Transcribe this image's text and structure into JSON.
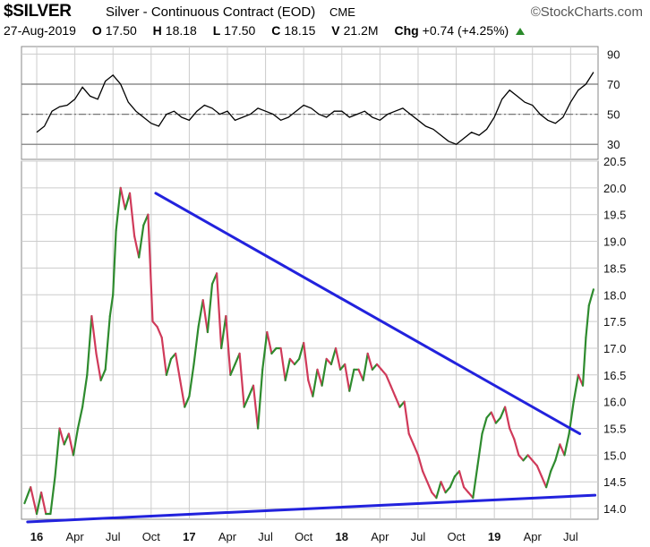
{
  "header": {
    "symbol": "$SILVER",
    "name": "Silver - Continuous Contract (EOD)",
    "exchange": "CME",
    "brand": "©StockCharts.com",
    "date": "27-Aug-2019",
    "open_label": "O",
    "open": "17.50",
    "high_label": "H",
    "high": "18.18",
    "low_label": "L",
    "low": "17.50",
    "close_label": "C",
    "close": "18.15",
    "volume_label": "V",
    "volume": "21.2M",
    "change_label": "Chg",
    "change": "+0.74 (+4.25%)"
  },
  "colors": {
    "up": "#2e8b2e",
    "down": "#d03a5a",
    "trendline": "#2222dd",
    "grid": "#cccccc",
    "indicator": "#000000"
  },
  "chart_data": [
    {
      "type": "line",
      "panel": "indicator",
      "ylim": [
        20,
        95
      ],
      "yticks": [
        90,
        70,
        50,
        30
      ],
      "reference_lines": [
        70,
        50,
        30
      ],
      "x": [
        2016.0,
        2016.05,
        2016.1,
        2016.15,
        2016.2,
        2016.25,
        2016.3,
        2016.35,
        2016.4,
        2016.45,
        2016.5,
        2016.55,
        2016.6,
        2016.65,
        2016.7,
        2016.75,
        2016.8,
        2016.85,
        2016.9,
        2016.95,
        2017.0,
        2017.05,
        2017.1,
        2017.15,
        2017.2,
        2017.25,
        2017.3,
        2017.35,
        2017.4,
        2017.45,
        2017.5,
        2017.55,
        2017.6,
        2017.65,
        2017.7,
        2017.75,
        2017.8,
        2017.85,
        2017.9,
        2017.95,
        2018.0,
        2018.05,
        2018.1,
        2018.15,
        2018.2,
        2018.25,
        2018.3,
        2018.35,
        2018.4,
        2018.45,
        2018.5,
        2018.55,
        2018.6,
        2018.65,
        2018.7,
        2018.75,
        2018.8,
        2018.85,
        2018.9,
        2018.95,
        2019.0,
        2019.05,
        2019.1,
        2019.15,
        2019.2,
        2019.25,
        2019.3,
        2019.35,
        2019.4,
        2019.45,
        2019.5,
        2019.55,
        2019.6,
        2019.65
      ],
      "values": [
        38,
        42,
        52,
        55,
        56,
        60,
        68,
        62,
        60,
        72,
        76,
        70,
        58,
        52,
        48,
        44,
        42,
        50,
        52,
        48,
        46,
        52,
        56,
        54,
        50,
        52,
        46,
        48,
        50,
        54,
        52,
        50,
        46,
        48,
        52,
        56,
        54,
        50,
        48,
        52,
        52,
        48,
        50,
        52,
        48,
        46,
        50,
        52,
        54,
        50,
        46,
        42,
        40,
        36,
        32,
        30,
        34,
        38,
        36,
        40,
        48,
        60,
        66,
        62,
        58,
        56,
        50,
        46,
        44,
        48,
        58,
        66,
        70,
        78
      ]
    },
    {
      "type": "line",
      "panel": "price",
      "ylim": [
        13.8,
        20.5
      ],
      "yticks": [
        20.5,
        20.0,
        19.5,
        19.0,
        18.5,
        18.0,
        17.5,
        17.0,
        16.5,
        16.0,
        15.5,
        15.0,
        14.5,
        14.0
      ],
      "x_tick_labels": [
        "16",
        "Apr",
        "Jul",
        "Oct",
        "17",
        "Apr",
        "Jul",
        "Oct",
        "18",
        "Apr",
        "Jul",
        "Oct",
        "19",
        "Apr",
        "Jul"
      ],
      "x_tick_values": [
        2016.0,
        2016.25,
        2016.5,
        2016.75,
        2017.0,
        2017.25,
        2017.5,
        2017.75,
        2018.0,
        2018.25,
        2018.5,
        2018.75,
        2019.0,
        2019.25,
        2019.5
      ],
      "x": [
        2015.92,
        2015.96,
        2016.0,
        2016.03,
        2016.06,
        2016.09,
        2016.12,
        2016.15,
        2016.18,
        2016.21,
        2016.24,
        2016.27,
        2016.3,
        2016.33,
        2016.36,
        2016.39,
        2016.42,
        2016.45,
        2016.48,
        2016.5,
        2016.52,
        2016.55,
        2016.58,
        2016.61,
        2016.64,
        2016.67,
        2016.7,
        2016.73,
        2016.76,
        2016.79,
        2016.82,
        2016.85,
        2016.88,
        2016.91,
        2016.94,
        2016.97,
        2017.0,
        2017.03,
        2017.06,
        2017.09,
        2017.12,
        2017.15,
        2017.18,
        2017.21,
        2017.24,
        2017.27,
        2017.3,
        2017.33,
        2017.36,
        2017.39,
        2017.42,
        2017.45,
        2017.48,
        2017.51,
        2017.54,
        2017.57,
        2017.6,
        2017.63,
        2017.66,
        2017.69,
        2017.72,
        2017.75,
        2017.78,
        2017.81,
        2017.84,
        2017.87,
        2017.9,
        2017.93,
        2017.96,
        2017.99,
        2018.02,
        2018.05,
        2018.08,
        2018.11,
        2018.14,
        2018.17,
        2018.2,
        2018.23,
        2018.26,
        2018.29,
        2018.32,
        2018.35,
        2018.38,
        2018.41,
        2018.44,
        2018.47,
        2018.5,
        2018.53,
        2018.56,
        2018.59,
        2018.62,
        2018.65,
        2018.68,
        2018.71,
        2018.74,
        2018.77,
        2018.8,
        2018.83,
        2018.86,
        2018.89,
        2018.92,
        2018.95,
        2018.98,
        2019.01,
        2019.04,
        2019.07,
        2019.1,
        2019.13,
        2019.16,
        2019.19,
        2019.22,
        2019.25,
        2019.28,
        2019.31,
        2019.34,
        2019.37,
        2019.4,
        2019.43,
        2019.46,
        2019.49,
        2019.52,
        2019.55,
        2019.58,
        2019.6,
        2019.62,
        2019.65
      ],
      "values": [
        14.1,
        14.4,
        13.9,
        14.3,
        13.9,
        13.9,
        14.6,
        15.5,
        15.2,
        15.4,
        15.0,
        15.5,
        15.9,
        16.5,
        17.6,
        16.9,
        16.4,
        16.6,
        17.6,
        18.0,
        19.2,
        20.0,
        19.6,
        19.9,
        19.1,
        18.7,
        19.3,
        19.5,
        17.5,
        17.4,
        17.2,
        16.5,
        16.8,
        16.9,
        16.4,
        15.9,
        16.1,
        16.7,
        17.4,
        17.9,
        17.3,
        18.2,
        18.4,
        17.0,
        17.6,
        16.5,
        16.7,
        16.9,
        15.9,
        16.1,
        16.3,
        15.5,
        16.6,
        17.3,
        16.9,
        17.0,
        17.0,
        16.4,
        16.8,
        16.7,
        16.8,
        17.1,
        16.4,
        16.1,
        16.6,
        16.3,
        16.8,
        16.7,
        17.0,
        16.6,
        16.7,
        16.2,
        16.6,
        16.6,
        16.4,
        16.9,
        16.6,
        16.7,
        16.6,
        16.5,
        16.3,
        16.1,
        15.9,
        16.0,
        15.4,
        15.2,
        15.0,
        14.7,
        14.5,
        14.3,
        14.2,
        14.5,
        14.3,
        14.4,
        14.6,
        14.7,
        14.4,
        14.3,
        14.2,
        14.8,
        15.4,
        15.7,
        15.8,
        15.6,
        15.7,
        15.9,
        15.5,
        15.3,
        15.0,
        14.9,
        15.0,
        14.9,
        14.8,
        14.6,
        14.4,
        14.7,
        14.9,
        15.2,
        15.0,
        15.4,
        16.0,
        16.5,
        16.3,
        17.2,
        17.8,
        18.1
      ]
    }
  ],
  "trendlines": [
    {
      "name": "resistance",
      "from": {
        "x": 2016.78,
        "y": 19.9
      },
      "to": {
        "x": 2019.56,
        "y": 15.4
      }
    },
    {
      "name": "support",
      "from": {
        "x": 2015.94,
        "y": 13.75
      },
      "to": {
        "x": 2019.66,
        "y": 14.25
      }
    }
  ]
}
